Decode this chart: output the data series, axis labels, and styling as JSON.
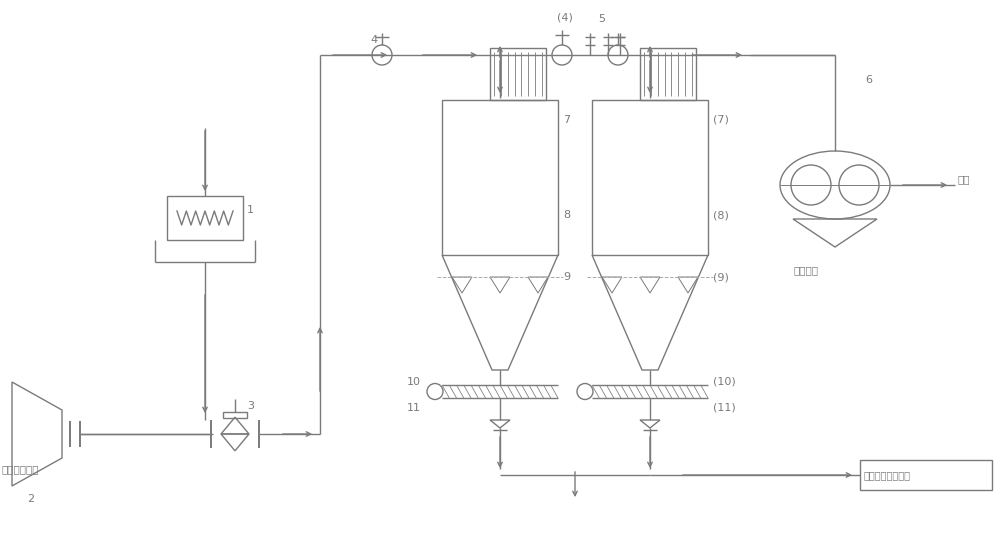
{
  "bg_color": "#ffffff",
  "lc": "#7a7a7a",
  "lw": 1.0,
  "tlw": 0.7,
  "labels": {
    "inlet_filter": "进风口过滤器",
    "blower": "罗茨风机",
    "exhaust": "排空",
    "carbon_line": "炭黑深加工生产线",
    "n1": "1",
    "n2": "2",
    "n3": "3",
    "n4": "4",
    "n4p": "(4)",
    "n5": "5",
    "n6": "6",
    "n7": "7",
    "n7p": "(7)",
    "n8": "8",
    "n8p": "(8)",
    "n9": "9",
    "n9p": "(9)",
    "n10": "10",
    "n10p": "(10)",
    "n11": "11",
    "n11p": "(11)"
  },
  "fs": 8,
  "sfs": 7.5
}
